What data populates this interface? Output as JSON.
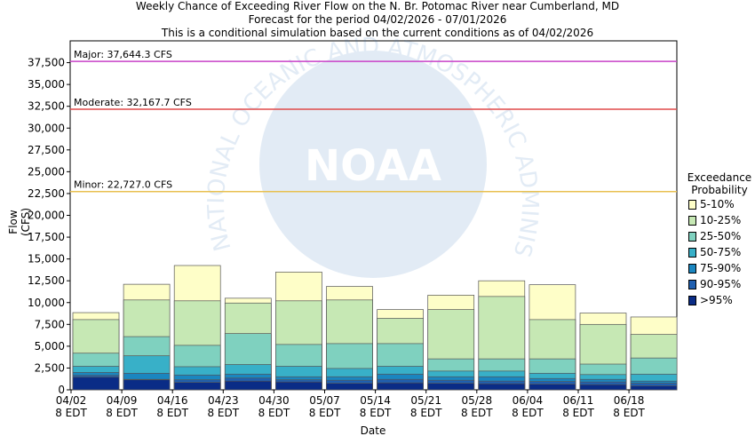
{
  "titles": [
    "Weekly Chance of Exceeding River Flow on the N. Br. Potomac River near Cumberland, MD",
    "Forecast for the period 04/02/2026 - 07/01/2026",
    "This is a conditional simulation based on the current conditions as of 04/02/2026"
  ],
  "watermark_text": "NATIONAL OCEANIC AND ATMOSPHERIC ADMINISTRATION",
  "watermark_logo_text": "NOAA",
  "chart_data": {
    "type": "bar",
    "stacked": true,
    "title": "Weekly Chance of Exceeding River Flow on the N. Br. Potomac River near Cumberland, MD",
    "xlabel": "Date",
    "ylabel": "Flow (CFS)",
    "ylim": [
      0,
      40000
    ],
    "yticks": [
      0,
      2500,
      5000,
      7500,
      10000,
      12500,
      15000,
      17500,
      20000,
      22500,
      25000,
      27500,
      30000,
      32500,
      35000,
      37500
    ],
    "ytick_labels": [
      "0",
      "2,500",
      "5,000",
      "7,500",
      "10,000",
      "12,500",
      "15,000",
      "17,500",
      "20,000",
      "22,500",
      "25,000",
      "27,500",
      "30,000",
      "32,500",
      "35,000",
      "37,500"
    ],
    "xtick_labels": [
      {
        "date": "04/02",
        "time": "8 EDT"
      },
      {
        "date": "04/09",
        "time": "8 EDT"
      },
      {
        "date": "04/16",
        "time": "8 EDT"
      },
      {
        "date": "04/23",
        "time": "8 EDT"
      },
      {
        "date": "04/30",
        "time": "8 EDT"
      },
      {
        "date": "05/07",
        "time": "8 EDT"
      },
      {
        "date": "05/14",
        "time": "8 EDT"
      },
      {
        "date": "05/21",
        "time": "8 EDT"
      },
      {
        "date": "05/28",
        "time": "8 EDT"
      },
      {
        "date": "06/04",
        "time": "8 EDT"
      },
      {
        "date": "06/11",
        "time": "8 EDT"
      },
      {
        "date": "06/18",
        "time": "8 EDT"
      }
    ],
    "legend_title": [
      "Exceedance",
      "Probability"
    ],
    "legend_position": "right",
    "grid": false,
    "series": [
      {
        "name": ">95%",
        "color": "#0a2c86",
        "values": [
          1450,
          1150,
          850,
          1000,
          900,
          750,
          800,
          750,
          700,
          650,
          600,
          450
        ]
      },
      {
        "name": "90-95%",
        "color": "#1f5fb0",
        "values": [
          1650,
          1200,
          1150,
          1350,
          1150,
          1100,
          1200,
          1100,
          1000,
          950,
          900,
          750
        ]
      },
      {
        "name": "75-90%",
        "color": "#1a86c0",
        "values": [
          2000,
          1900,
          1700,
          1800,
          1500,
          1500,
          1800,
          1500,
          1500,
          1300,
          1200,
          1000
        ]
      },
      {
        "name": "50-75%",
        "color": "#38b0c8",
        "values": [
          2700,
          3900,
          2650,
          2900,
          2700,
          2450,
          2700,
          2150,
          2150,
          1900,
          1750,
          1800
        ]
      },
      {
        "name": "25-50%",
        "color": "#7fd1bf",
        "values": [
          4200,
          6100,
          5100,
          6450,
          5200,
          5300,
          5300,
          3550,
          3550,
          3550,
          2950,
          3650
        ]
      },
      {
        "name": "10-25%",
        "color": "#c6e8b4",
        "values": [
          8050,
          10300,
          10200,
          9950,
          10200,
          10300,
          8200,
          9200,
          10700,
          8050,
          7500,
          6350
        ]
      },
      {
        "name": "5-10%",
        "color": "#fefec8",
        "values": [
          8850,
          12100,
          14250,
          10500,
          13500,
          11850,
          9200,
          10850,
          12500,
          12050,
          8800,
          8350
        ]
      }
    ],
    "thresholds": [
      {
        "label": "Major: 37,644.3 CFS",
        "value": 37644.3,
        "color": "#c842c8"
      },
      {
        "label": "Moderate: 32,167.7 CFS",
        "value": 32167.7,
        "color": "#e04a4a"
      },
      {
        "label": "Minor: 22,727.0 CFS",
        "value": 22727.0,
        "color": "#e8c050"
      }
    ]
  }
}
